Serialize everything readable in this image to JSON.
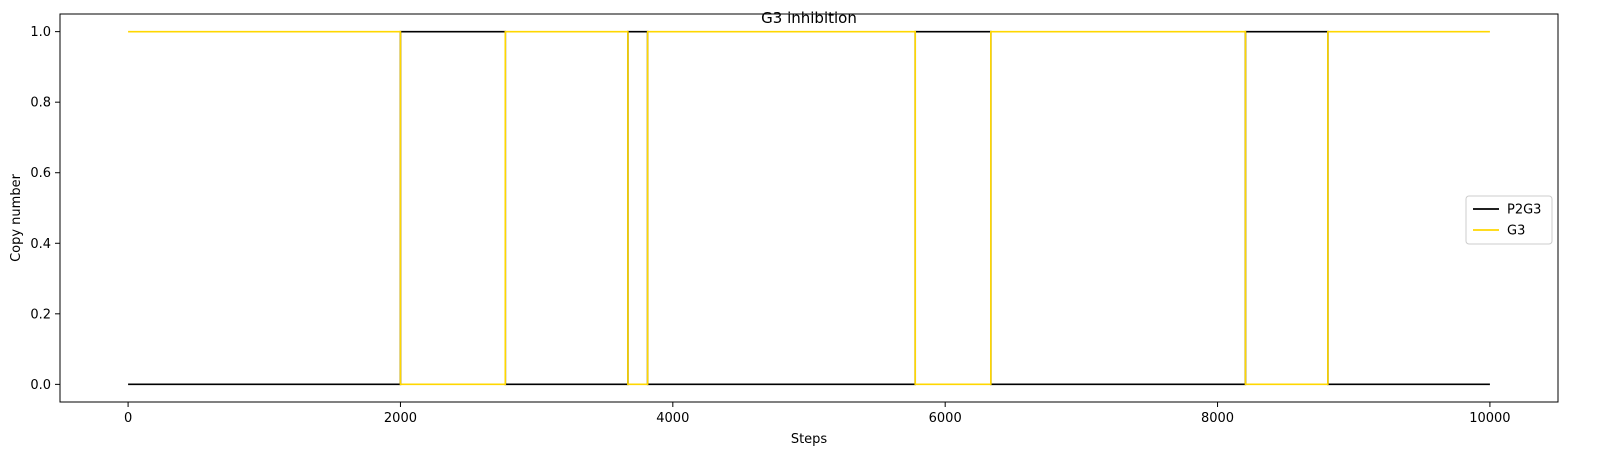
{
  "chart_data": {
    "type": "line",
    "title": "G3 inhibition",
    "xlabel": "Steps",
    "ylabel": "Copy number",
    "xlim": [
      -500,
      10500
    ],
    "ylim": [
      -0.05,
      1.05
    ],
    "xticks": [
      0,
      2000,
      4000,
      6000,
      8000,
      10000
    ],
    "xtick_labels": [
      "0",
      "2000",
      "4000",
      "6000",
      "8000",
      "10000"
    ],
    "yticks": [
      0.0,
      0.2,
      0.4,
      0.6,
      0.8,
      1.0
    ],
    "ytick_labels": [
      "0.0",
      "0.2",
      "0.4",
      "0.6",
      "0.8",
      "1.0"
    ],
    "grid": false,
    "legend": {
      "position": "center-right",
      "entries": [
        "P2G3",
        "G3"
      ]
    },
    "series": [
      {
        "name": "P2G3",
        "color": "#000000",
        "points": [
          [
            0,
            0
          ],
          [
            2000,
            0
          ],
          [
            2000,
            1
          ],
          [
            2770,
            1
          ],
          [
            2770,
            0
          ],
          [
            3670,
            0
          ],
          [
            3670,
            1
          ],
          [
            3815,
            1
          ],
          [
            3815,
            0
          ],
          [
            5780,
            0
          ],
          [
            5780,
            1
          ],
          [
            6335,
            1
          ],
          [
            6335,
            0
          ],
          [
            8205,
            0
          ],
          [
            8205,
            1
          ],
          [
            8810,
            1
          ],
          [
            8810,
            0
          ],
          [
            10000,
            0
          ]
        ]
      },
      {
        "name": "G3",
        "color": "#ffd700",
        "points": [
          [
            0,
            1
          ],
          [
            2000,
            1
          ],
          [
            2000,
            0
          ],
          [
            2770,
            0
          ],
          [
            2770,
            1
          ],
          [
            3670,
            1
          ],
          [
            3670,
            0
          ],
          [
            3815,
            0
          ],
          [
            3815,
            1
          ],
          [
            5780,
            1
          ],
          [
            5780,
            0
          ],
          [
            6335,
            0
          ],
          [
            6335,
            1
          ],
          [
            8205,
            1
          ],
          [
            8205,
            0
          ],
          [
            8810,
            0
          ],
          [
            8810,
            1
          ],
          [
            10000,
            1
          ]
        ]
      }
    ]
  }
}
